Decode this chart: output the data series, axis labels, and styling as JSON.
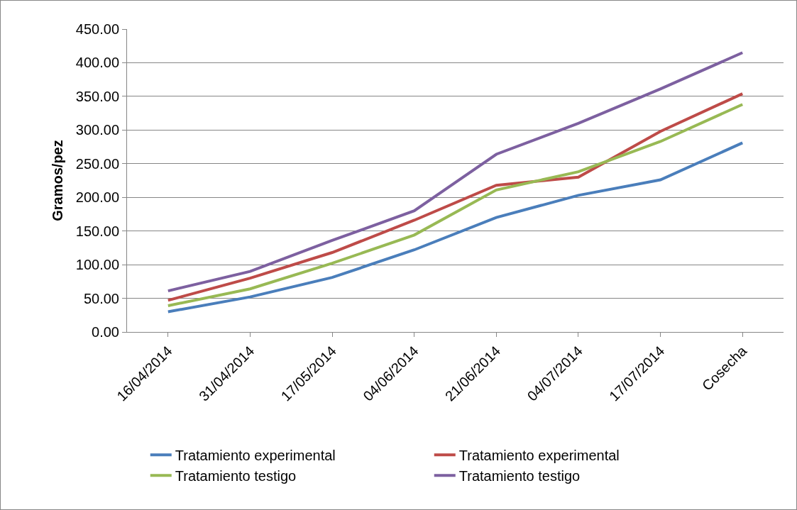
{
  "chart_data": {
    "type": "line",
    "ylabel": "Gramos/pez",
    "categories": [
      "16/04/2014",
      "31/04/2014",
      "17/05/2014",
      "04/06/2014",
      "21/06/2014",
      "04/07/2014",
      "17/07/2014",
      "Cosecha"
    ],
    "series": [
      {
        "name": "Tratamiento experimental",
        "color": "#4a7ebb",
        "values": [
          30,
          52,
          81,
          122,
          170,
          203,
          226,
          281
        ]
      },
      {
        "name": "Tratamiento experimental",
        "color": "#be4b48",
        "values": [
          47,
          80,
          118,
          166,
          218,
          230,
          298,
          354
        ]
      },
      {
        "name": "Tratamiento testigo",
        "color": "#98b954",
        "values": [
          39,
          64,
          102,
          144,
          211,
          238,
          283,
          338
        ]
      },
      {
        "name": "Tratamiento testigo",
        "color": "#7d60a0",
        "values": [
          61,
          90,
          136,
          180,
          264,
          310,
          361,
          415
        ]
      }
    ],
    "ylim": [
      0,
      450
    ],
    "yticks": [
      {
        "value": 0,
        "label": "0.00"
      },
      {
        "value": 50,
        "label": "50.00"
      },
      {
        "value": 100,
        "label": "100.00"
      },
      {
        "value": 150,
        "label": "150.00"
      },
      {
        "value": 200,
        "label": "200.00"
      },
      {
        "value": 250,
        "label": "250.00"
      },
      {
        "value": 300,
        "label": "300.00"
      },
      {
        "value": 350,
        "label": "350.00"
      },
      {
        "value": 400,
        "label": "400.00"
      },
      {
        "value": 450,
        "label": "450.00"
      }
    ],
    "grid": "y",
    "legend": "bottom",
    "marker": "none",
    "line_style": "solid"
  }
}
